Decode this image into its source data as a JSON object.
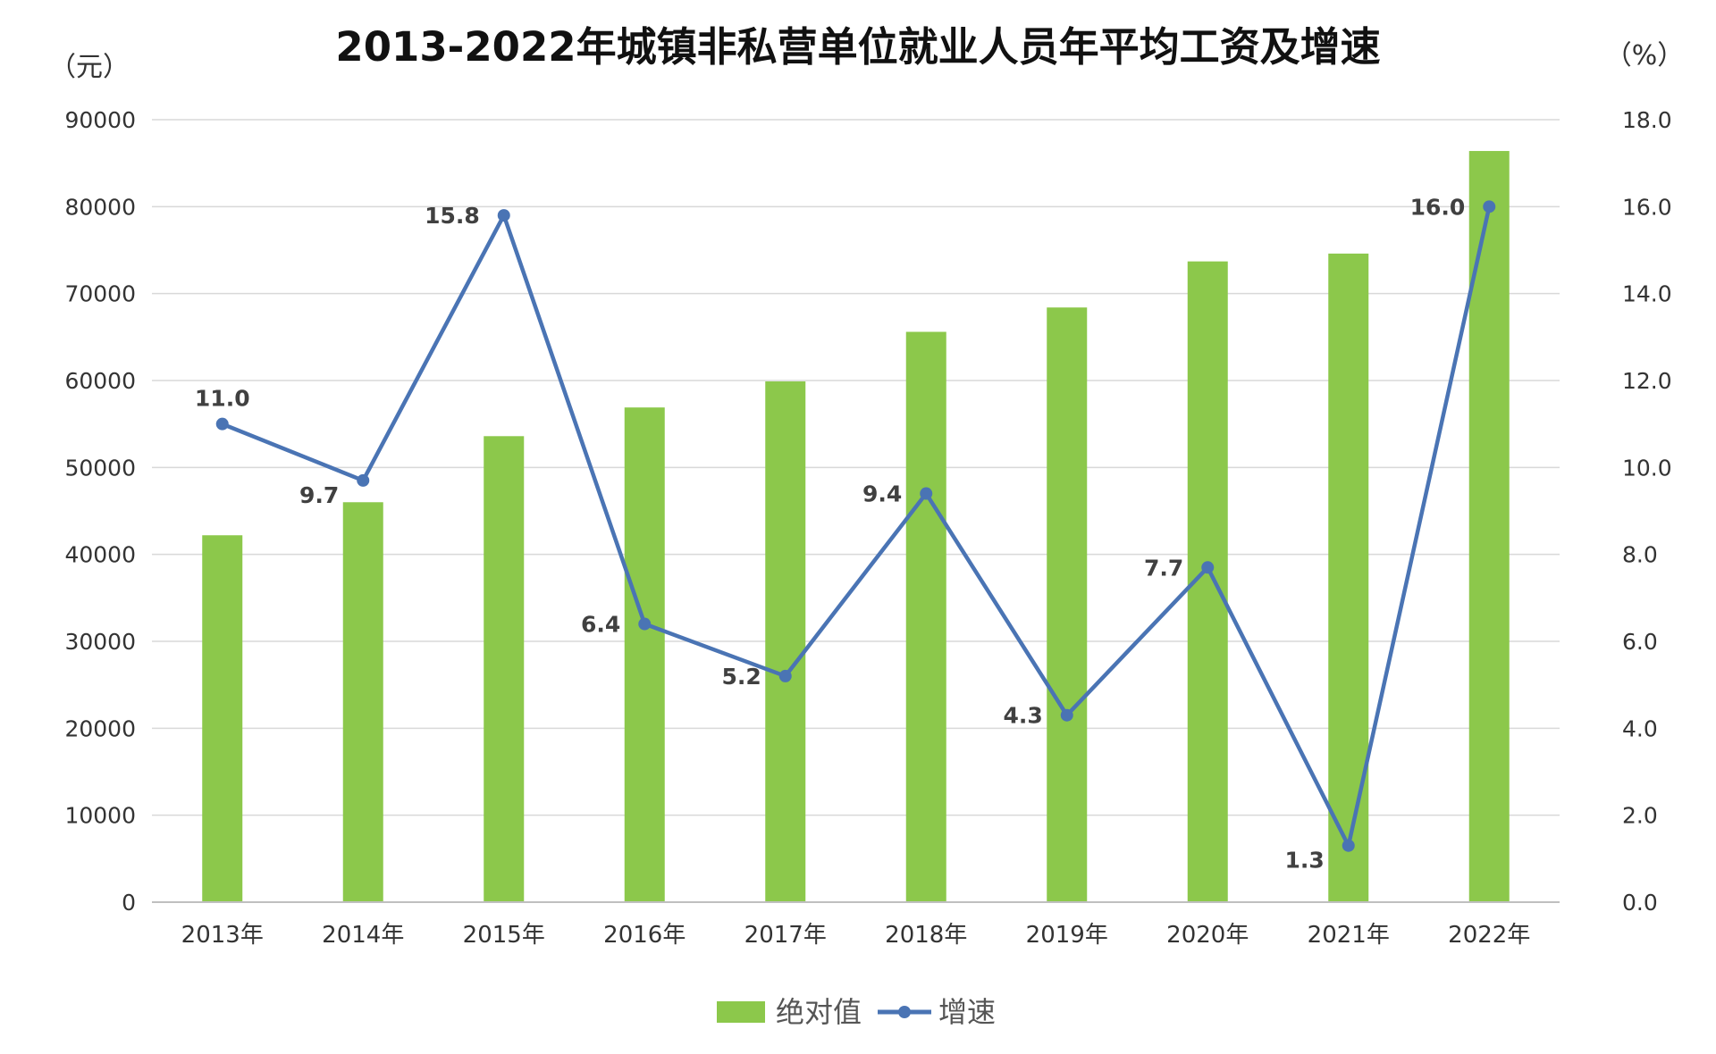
{
  "chart_data": {
    "type": "bar+line",
    "title": "2013-2022年城镇非私营单位就业人员年平均工资及增速",
    "left_unit": "（元）",
    "right_unit": "（%）",
    "categories": [
      "2013年",
      "2014年",
      "2015年",
      "2016年",
      "2017年",
      "2018年",
      "2019年",
      "2020年",
      "2021年",
      "2022年"
    ],
    "series": [
      {
        "name": "绝对值",
        "kind": "bar",
        "axis": "left",
        "color": "#8cc84b",
        "values": [
          42200,
          46000,
          53600,
          56900,
          59900,
          65600,
          68400,
          73700,
          74600,
          86400
        ]
      },
      {
        "name": "增速",
        "kind": "line",
        "axis": "right",
        "color": "#4a74b4",
        "values": [
          11.0,
          9.7,
          15.8,
          6.4,
          5.2,
          9.4,
          4.3,
          7.7,
          1.3,
          16.0
        ],
        "labels": [
          "11.0",
          "9.7",
          "15.8",
          "6.4",
          "5.2",
          "9.4",
          "4.3",
          "7.7",
          "1.3",
          "16.0"
        ]
      }
    ],
    "left_axis": {
      "min": 0,
      "max": 90000,
      "ticks": [
        "0",
        "10000",
        "20000",
        "30000",
        "40000",
        "50000",
        "60000",
        "70000",
        "80000",
        "90000"
      ]
    },
    "right_axis": {
      "min": 0,
      "max": 18,
      "ticks": [
        "0.0",
        "2.0",
        "4.0",
        "6.0",
        "8.0",
        "10.0",
        "12.0",
        "14.0",
        "16.0",
        "18.0"
      ]
    },
    "grid": true,
    "legend_position": "bottom"
  }
}
